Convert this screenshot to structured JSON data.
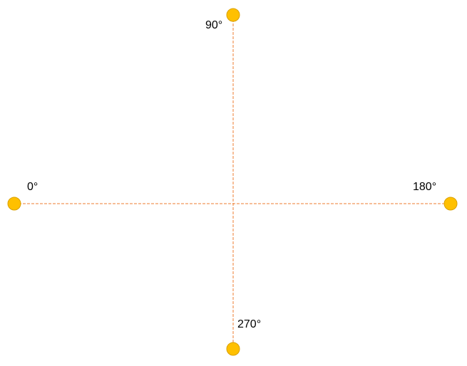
{
  "colors": {
    "axis_line": "#ED7D31",
    "point_fill": "#FFC000",
    "point_stroke": "#D9A000",
    "label": "#000000",
    "background": "#FFFFFF"
  },
  "points": [
    {
      "id": "0",
      "label": "0°"
    },
    {
      "id": "90",
      "label": "90°"
    },
    {
      "id": "180",
      "label": "180°"
    },
    {
      "id": "270",
      "label": "270°"
    }
  ]
}
